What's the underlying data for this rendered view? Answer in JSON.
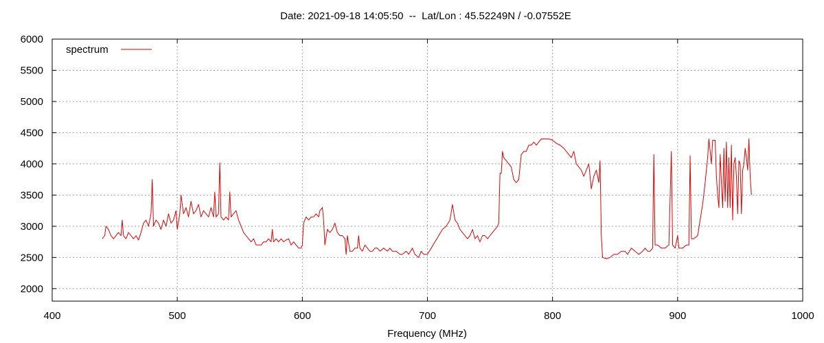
{
  "chart_data": {
    "type": "line",
    "title": "Date: 2021-09-18 14:05:50  --  Lat/Lon : 45.52249N / -0.07552E",
    "x_label": "Frequency (MHz)",
    "xlim": [
      400,
      1000
    ],
    "xticks": [
      400,
      500,
      600,
      700,
      800,
      900,
      1000
    ],
    "ylim": [
      1800,
      6000
    ],
    "yticks": [
      2000,
      2500,
      3000,
      3500,
      4000,
      4500,
      5000,
      5500,
      6000
    ],
    "grid": true,
    "legend": "top-left",
    "x": [
      440,
      442,
      443,
      445,
      447,
      449,
      451,
      453,
      455,
      456,
      457,
      459,
      461,
      463,
      465,
      467,
      469,
      471,
      473,
      475,
      477,
      479,
      480,
      481,
      483,
      485,
      487,
      489,
      491,
      493,
      495,
      497,
      499,
      500,
      502,
      503,
      505,
      507,
      509,
      511,
      513,
      515,
      517,
      519,
      521,
      523,
      525,
      527,
      529,
      530,
      531,
      533,
      534,
      535,
      537,
      539,
      541,
      542,
      543,
      545,
      547,
      549,
      551,
      553,
      555,
      557,
      559,
      561,
      563,
      565,
      567,
      569,
      571,
      573,
      575,
      576,
      577,
      579,
      581,
      583,
      585,
      587,
      589,
      591,
      593,
      595,
      597,
      599,
      600,
      601,
      603,
      605,
      607,
      609,
      611,
      613,
      614,
      616,
      617,
      618,
      620,
      622,
      624,
      626,
      628,
      630,
      632,
      634,
      635,
      636,
      638,
      640,
      642,
      644,
      645,
      646,
      648,
      650,
      652,
      654,
      656,
      658,
      660,
      662,
      665,
      668,
      670,
      672,
      675,
      678,
      680,
      683,
      685,
      688,
      690,
      693,
      695,
      697,
      700,
      703,
      706,
      709,
      712,
      715,
      718,
      720,
      722,
      724,
      726,
      728,
      730,
      732,
      734,
      736,
      738,
      740,
      742,
      744,
      746,
      748,
      750,
      752,
      754,
      756,
      757,
      758,
      759,
      760,
      761,
      763,
      765,
      767,
      769,
      771,
      773,
      775,
      777,
      779,
      781,
      783,
      785,
      787,
      789,
      791,
      794,
      797,
      800,
      803,
      806,
      809,
      811,
      813,
      815,
      817,
      819,
      821,
      823,
      825,
      827,
      829,
      831,
      833,
      835,
      837,
      838,
      839,
      840,
      843,
      846,
      849,
      852,
      855,
      858,
      860,
      863,
      866,
      869,
      872,
      874,
      876,
      878,
      880,
      881,
      882,
      884,
      887,
      890,
      893,
      895,
      896,
      898,
      900,
      901,
      904,
      907,
      909,
      910,
      911,
      913,
      916,
      918,
      920,
      922,
      924,
      925,
      927,
      928,
      930,
      931,
      932,
      933,
      934,
      935,
      936,
      937,
      938,
      939,
      940,
      941,
      942,
      943,
      944,
      945,
      946,
      947,
      948,
      949,
      950,
      951,
      952,
      953,
      954,
      955,
      956,
      957,
      958,
      959
    ],
    "series": [
      {
        "name": "spectrum",
        "color": "#e00000",
        "values": [
          2800,
          2850,
          3000,
          2950,
          2850,
          2800,
          2850,
          2900,
          2850,
          3100,
          2850,
          2800,
          2900,
          2850,
          2800,
          2850,
          2780,
          2900,
          3050,
          3100,
          3000,
          3200,
          3750,
          3000,
          3100,
          3050,
          2950,
          3100,
          3000,
          3200,
          3050,
          3100,
          3250,
          2950,
          3200,
          3500,
          3200,
          3300,
          3150,
          3400,
          3200,
          3250,
          3350,
          3150,
          3250,
          3200,
          3150,
          3300,
          3150,
          3550,
          3150,
          3200,
          4020,
          3150,
          3100,
          3150,
          3100,
          3550,
          3150,
          3200,
          3250,
          3100,
          3000,
          2900,
          2850,
          2800,
          2750,
          2800,
          2700,
          2700,
          2700,
          2750,
          2750,
          2800,
          2750,
          2950,
          2750,
          2800,
          2750,
          2800,
          2750,
          2780,
          2800,
          2700,
          2750,
          2700,
          2650,
          2650,
          2700,
          3050,
          3150,
          3100,
          3150,
          3150,
          3200,
          3150,
          3250,
          3300,
          3100,
          2700,
          2950,
          2900,
          2950,
          3050,
          2900,
          2850,
          2850,
          2800,
          2550,
          2850,
          2600,
          2600,
          2650,
          2650,
          2850,
          2650,
          2600,
          2700,
          2650,
          2600,
          2600,
          2650,
          2650,
          2600,
          2650,
          2600,
          2650,
          2600,
          2600,
          2550,
          2550,
          2600,
          2550,
          2650,
          2550,
          2500,
          2600,
          2550,
          2550,
          2650,
          2750,
          2850,
          2950,
          3000,
          3100,
          3350,
          3100,
          3050,
          2950,
          2900,
          2850,
          2800,
          2850,
          2950,
          2800,
          2850,
          2750,
          2850,
          2850,
          2800,
          2850,
          2900,
          2950,
          3000,
          3050,
          3850,
          3850,
          4200,
          4100,
          4050,
          4000,
          3950,
          3750,
          3700,
          3750,
          4150,
          4200,
          4200,
          4300,
          4300,
          4350,
          4300,
          4350,
          4400,
          4400,
          4400,
          4380,
          4330,
          4300,
          4250,
          4200,
          4150,
          4100,
          4200,
          4000,
          3950,
          3900,
          3800,
          3900,
          4000,
          3600,
          3800,
          3900,
          3700,
          4050,
          2850,
          2500,
          2480,
          2500,
          2550,
          2550,
          2600,
          2600,
          2550,
          2650,
          2600,
          2550,
          2600,
          2650,
          2600,
          2600,
          2650,
          4150,
          2700,
          2700,
          2650,
          2650,
          2700,
          4200,
          2700,
          2650,
          2850,
          2650,
          2650,
          2700,
          2700,
          4130,
          2800,
          2800,
          2850,
          3100,
          3350,
          3700,
          4100,
          4400,
          4000,
          4380,
          4380,
          3800,
          3500,
          3300,
          4150,
          3700,
          3300,
          4250,
          3400,
          4350,
          3300,
          4100,
          3300,
          4300,
          3100,
          4000,
          4100,
          3800,
          3200,
          4050,
          4000,
          3200,
          3900,
          4000,
          4250,
          4100,
          3900,
          4400,
          3800,
          3500
        ]
      }
    ]
  }
}
